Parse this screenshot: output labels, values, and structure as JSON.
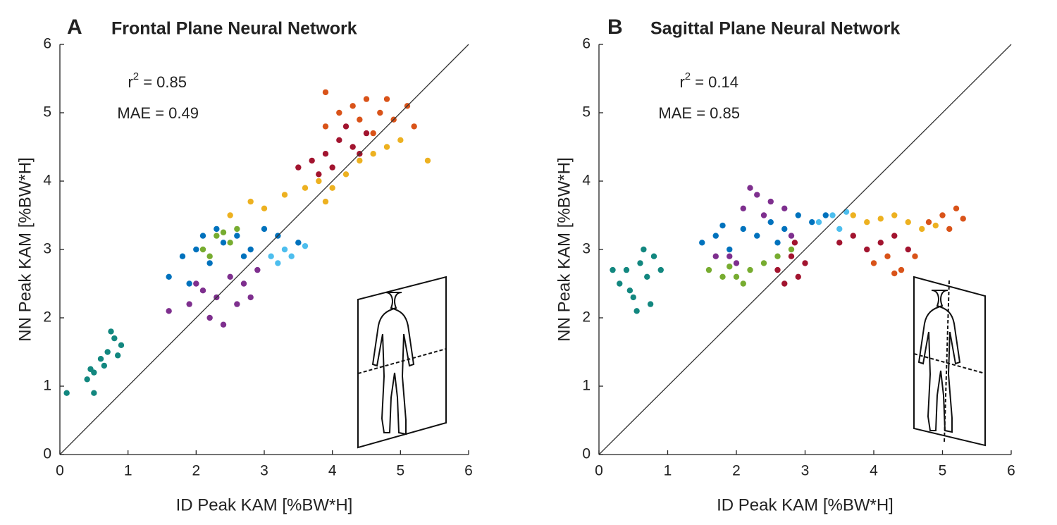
{
  "chart_data": [
    {
      "type": "scatter",
      "panel_label": "A",
      "title": "Frontal Plane Neural Network",
      "annotations": [
        {
          "base": "r",
          "superscript": "2",
          "rest": " = 0.85"
        },
        {
          "base": "MAE",
          "rest": " = 0.49"
        }
      ],
      "xlabel": "ID Peak KAM [%BW*H]",
      "ylabel": "NN Peak KAM [%BW*H]",
      "xlim": [
        0,
        6
      ],
      "ylim": [
        0,
        6
      ],
      "xticks": [
        0,
        1,
        2,
        3,
        4,
        5,
        6
      ],
      "yticks": [
        0,
        1,
        2,
        3,
        4,
        5,
        6
      ],
      "identity_line": true,
      "series": [
        {
          "color": "#12877f",
          "x": [
            0.4,
            0.5,
            0.6,
            0.7,
            0.8,
            0.5,
            0.9,
            0.65,
            0.75,
            0.45,
            0.1,
            0.85
          ],
          "values": [
            1.1,
            1.2,
            1.4,
            1.5,
            1.7,
            0.9,
            1.6,
            1.3,
            1.8,
            1.25,
            0.9,
            1.45
          ]
        },
        {
          "color": "#7e2f8e",
          "x": [
            1.6,
            1.9,
            2.1,
            2.3,
            2.5,
            2.7,
            2.9,
            2.2,
            2.6,
            2.0,
            2.8,
            2.4
          ],
          "values": [
            2.1,
            2.2,
            2.4,
            2.3,
            2.6,
            2.5,
            2.7,
            2.0,
            2.2,
            2.5,
            2.3,
            1.9
          ]
        },
        {
          "color": "#77ac30",
          "x": [
            2.1,
            2.3,
            2.5,
            2.6,
            2.2,
            2.4
          ],
          "values": [
            3.0,
            3.2,
            3.1,
            3.3,
            2.9,
            3.25
          ]
        },
        {
          "color": "#edb120",
          "x": [
            2.5,
            2.8,
            3.0,
            3.3,
            3.6,
            3.8,
            4.0,
            4.2,
            4.4,
            4.6,
            4.8,
            5.0,
            5.4,
            3.9
          ],
          "values": [
            3.5,
            3.7,
            3.6,
            3.8,
            3.9,
            4.0,
            3.9,
            4.1,
            4.3,
            4.4,
            4.5,
            4.6,
            4.3,
            3.7
          ]
        },
        {
          "color": "#d95319",
          "x": [
            3.9,
            4.1,
            4.3,
            4.5,
            4.7,
            4.9,
            5.1,
            4.4,
            4.8,
            5.2,
            4.6,
            3.9
          ],
          "values": [
            4.8,
            5.0,
            5.1,
            5.2,
            5.0,
            4.9,
            5.1,
            4.9,
            5.2,
            4.8,
            4.7,
            5.3
          ]
        },
        {
          "color": "#a2142f",
          "x": [
            3.5,
            3.7,
            3.9,
            4.1,
            4.3,
            4.5,
            4.0,
            4.2,
            3.8,
            4.4
          ],
          "values": [
            4.2,
            4.3,
            4.4,
            4.6,
            4.5,
            4.7,
            4.2,
            4.8,
            4.1,
            4.4
          ]
        },
        {
          "color": "#4dbeee",
          "x": [
            3.1,
            3.3,
            3.5,
            3.2,
            3.4,
            3.6
          ],
          "values": [
            2.9,
            3.0,
            3.1,
            2.8,
            2.9,
            3.05
          ]
        },
        {
          "color": "#0072bd",
          "x": [
            1.6,
            1.8,
            2.0,
            2.2,
            2.4,
            2.6,
            2.8,
            3.0,
            3.2,
            1.9,
            2.3,
            3.5,
            2.1,
            2.7
          ],
          "values": [
            2.6,
            2.9,
            3.0,
            2.8,
            3.1,
            3.2,
            3.0,
            3.3,
            3.2,
            2.5,
            3.3,
            3.1,
            3.2,
            2.9
          ]
        }
      ]
    },
    {
      "type": "scatter",
      "panel_label": "B",
      "title": "Sagittal Plane Neural Network",
      "annotations": [
        {
          "base": "r",
          "superscript": "2",
          "rest": " = 0.14"
        },
        {
          "base": "MAE",
          "rest": " = 0.85"
        }
      ],
      "xlabel": "ID Peak KAM [%BW*H]",
      "ylabel": "NN Peak KAM [%BW*H]",
      "xlim": [
        0,
        6
      ],
      "ylim": [
        0,
        6
      ],
      "xticks": [
        0,
        1,
        2,
        3,
        4,
        5,
        6
      ],
      "yticks": [
        0,
        1,
        2,
        3,
        4,
        5,
        6
      ],
      "identity_line": true,
      "series": [
        {
          "color": "#12877f",
          "x": [
            0.3,
            0.4,
            0.5,
            0.6,
            0.7,
            0.8,
            0.55,
            0.65,
            0.45,
            0.9,
            0.2,
            0.75
          ],
          "values": [
            2.5,
            2.7,
            2.3,
            2.8,
            2.6,
            2.9,
            2.1,
            3.0,
            2.4,
            2.7,
            2.7,
            2.2
          ]
        },
        {
          "color": "#77ac30",
          "x": [
            1.6,
            1.8,
            2.0,
            2.2,
            2.4,
            2.6,
            2.8,
            2.1,
            1.9
          ],
          "values": [
            2.7,
            2.6,
            2.6,
            2.7,
            2.8,
            2.9,
            3.0,
            2.5,
            2.75
          ]
        },
        {
          "color": "#7e2f8e",
          "x": [
            1.9,
            2.1,
            2.3,
            2.5,
            2.2,
            2.7,
            2.0,
            2.4,
            1.7,
            2.8
          ],
          "values": [
            2.9,
            3.6,
            3.8,
            3.7,
            3.9,
            3.6,
            2.8,
            3.5,
            2.9,
            3.2
          ]
        },
        {
          "color": "#d95319",
          "x": [
            4.0,
            4.2,
            4.4,
            4.6,
            4.8,
            5.0,
            5.2,
            5.3,
            4.3,
            5.1
          ],
          "values": [
            2.8,
            2.9,
            2.7,
            2.9,
            3.4,
            3.5,
            3.6,
            3.45,
            2.65,
            3.3
          ]
        },
        {
          "color": "#edb120",
          "x": [
            3.7,
            3.9,
            4.1,
            4.3,
            4.5,
            4.7,
            4.9
          ],
          "values": [
            3.5,
            3.4,
            3.45,
            3.5,
            3.4,
            3.3,
            3.35
          ]
        },
        {
          "color": "#0072bd",
          "x": [
            1.5,
            1.7,
            1.9,
            2.1,
            2.3,
            2.5,
            2.7,
            2.9,
            3.1,
            3.3,
            1.8,
            2.6
          ],
          "values": [
            3.1,
            3.2,
            3.0,
            3.3,
            3.2,
            3.4,
            3.3,
            3.5,
            3.4,
            3.5,
            3.35,
            3.1
          ]
        },
        {
          "color": "#4dbeee",
          "x": [
            3.2,
            3.4,
            3.5,
            3.6
          ],
          "values": [
            3.4,
            3.5,
            3.3,
            3.55
          ]
        },
        {
          "color": "#a2142f",
          "x": [
            2.6,
            2.8,
            2.9,
            2.7,
            3.0,
            2.85,
            3.5,
            3.7,
            3.9,
            4.1,
            4.3,
            4.5
          ],
          "values": [
            2.7,
            2.9,
            2.6,
            2.5,
            2.8,
            3.1,
            3.1,
            3.2,
            3.0,
            3.1,
            3.2,
            3.0
          ]
        }
      ]
    }
  ]
}
